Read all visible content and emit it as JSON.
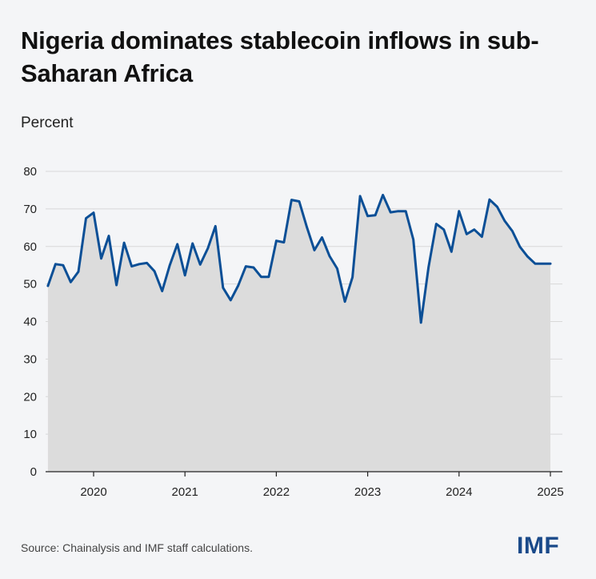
{
  "header": {
    "title": "Nigeria dominates stablecoin inflows in sub-Saharan Africa",
    "unit_label": "Percent"
  },
  "footer": {
    "source": "Source: Chainalysis and IMF staff calculations.",
    "logo": "IMF"
  },
  "colors": {
    "line": "#0b4f96",
    "area": "#dcdcdc",
    "grid": "#d8d8d8",
    "background": "#f4f5f7"
  },
  "chart_data": {
    "type": "area",
    "title": "Nigeria dominates stablecoin inflows in sub-Saharan Africa",
    "ylabel": "Percent",
    "xlabel": "",
    "ylim": [
      0,
      80
    ],
    "yticks": [
      0,
      10,
      20,
      30,
      40,
      50,
      60,
      70,
      80
    ],
    "xticks": [
      "2020",
      "2021",
      "2022",
      "2023",
      "2024",
      "2025"
    ],
    "grid": true,
    "x": [
      "2019-07",
      "2019-08",
      "2019-09",
      "2019-10",
      "2019-11",
      "2019-12",
      "2020-01",
      "2020-02",
      "2020-03",
      "2020-04",
      "2020-05",
      "2020-06",
      "2020-07",
      "2020-08",
      "2020-09",
      "2020-10",
      "2020-11",
      "2020-12",
      "2021-01",
      "2021-02",
      "2021-03",
      "2021-04",
      "2021-05",
      "2021-06",
      "2021-07",
      "2021-08",
      "2021-09",
      "2021-10",
      "2021-11",
      "2021-12",
      "2022-01",
      "2022-02",
      "2022-03",
      "2022-04",
      "2022-05",
      "2022-06",
      "2022-07",
      "2022-08",
      "2022-09",
      "2022-10",
      "2022-11",
      "2022-12",
      "2023-01",
      "2023-02",
      "2023-03",
      "2023-04",
      "2023-05",
      "2023-06",
      "2023-07",
      "2023-08",
      "2023-09",
      "2023-10",
      "2023-11",
      "2023-12",
      "2024-01",
      "2024-02",
      "2024-03",
      "2024-04",
      "2024-05",
      "2024-06",
      "2024-07",
      "2024-08",
      "2024-09",
      "2024-10",
      "2024-11",
      "2024-12",
      "2025-01"
    ],
    "series": [
      {
        "values": [
          49.5,
          55.3,
          55.0,
          50.5,
          53.3,
          67.5,
          69.0,
          56.8,
          62.8,
          49.7,
          61.0,
          54.7,
          55.3,
          55.6,
          53.4,
          48.1,
          55.0,
          60.6,
          52.3,
          60.8,
          55.2,
          59.5,
          65.4,
          49.0,
          45.7,
          49.6,
          54.7,
          54.4,
          51.9,
          51.9,
          61.5,
          61.1,
          72.4,
          72.0,
          65.2,
          59.0,
          62.4,
          57.4,
          54.1,
          45.3,
          51.8,
          73.4,
          68.1,
          68.3,
          73.7,
          69.1,
          69.4,
          69.4,
          61.8,
          39.7,
          54.5,
          66.0,
          64.5,
          58.6,
          69.4,
          63.3,
          64.5,
          62.6,
          72.5,
          70.6,
          66.8,
          64.1,
          59.9,
          57.3,
          55.4,
          55.4,
          55.4
        ]
      }
    ]
  }
}
